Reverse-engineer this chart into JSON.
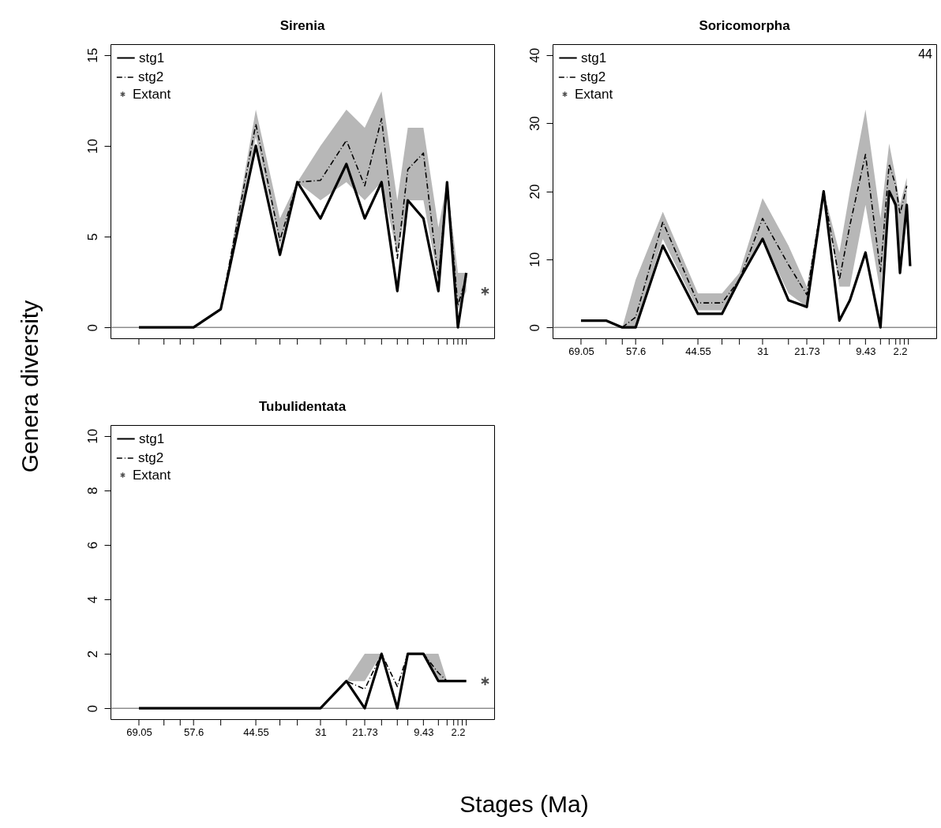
{
  "chart_data": [
    {
      "type": "line",
      "title": "Sirenia",
      "xlim": [
        75,
        -5.4
      ],
      "ylim": [
        -0.6,
        15.6
      ],
      "yticks": [
        0,
        5,
        10,
        15
      ],
      "xticks": [
        69.05,
        {
          "value": 63.8,
          "label": null
        },
        {
          "value": 60.4,
          "label": null
        },
        57.6,
        {
          "value": 51.9,
          "label": null
        },
        44.55,
        {
          "value": 39.5,
          "label": null
        },
        {
          "value": 35.85,
          "label": null
        },
        31,
        {
          "value": 25.57,
          "label": null
        },
        21.73,
        {
          "value": 18.2,
          "label": null
        },
        {
          "value": 14.9,
          "label": null
        },
        {
          "value": 12.7,
          "label": null
        },
        9.43,
        {
          "value": 6.29,
          "label": null
        },
        {
          "value": 4.47,
          "label": null
        },
        {
          "value": 3.09,
          "label": null
        },
        2.2,
        {
          "value": 1.29,
          "label": null
        },
        {
          "value": 0.45,
          "label": null
        }
      ],
      "tick_labels": "y",
      "legend": "top left",
      "grid": false,
      "ref_lines": [
        {
          "axis": "y",
          "value": 0,
          "color": "#555555"
        }
      ],
      "x": [
        69.05,
        63.8,
        60.4,
        57.6,
        51.9,
        44.55,
        39.5,
        35.85,
        31,
        25.57,
        21.73,
        18.2,
        14.9,
        12.7,
        9.43,
        6.29,
        4.47,
        2.2,
        0.45
      ],
      "series": [
        {
          "name": "stg1",
          "type": "line",
          "color": "#000000",
          "line_style": "solid",
          "values": [
            0,
            0,
            0,
            0,
            1,
            10,
            4,
            8,
            6,
            9,
            6,
            8,
            2,
            7,
            6,
            2,
            8,
            0,
            3
          ]
        },
        {
          "name": "stg2",
          "type": "line",
          "color": "#000000",
          "line_style": "dashed",
          "values": [
            0,
            0,
            0,
            0,
            1,
            11.2,
            4.8,
            8,
            8.1,
            10.3,
            7.8,
            11.5,
            3.8,
            8.7,
            9.6,
            2.7,
            8,
            1.2,
            2.8
          ],
          "lower": [
            0,
            0,
            0,
            0,
            1,
            10.5,
            4.5,
            8,
            7,
            8,
            7,
            8,
            4,
            7,
            7,
            2.5,
            8,
            1,
            2
          ],
          "upper": [
            0,
            0,
            0,
            0,
            1,
            12,
            6,
            8,
            10,
            12,
            11,
            13,
            7,
            11,
            11,
            5.5,
            8,
            3,
            3
          ]
        },
        {
          "name": "Extant",
          "type": "scatter",
          "marker": "cross",
          "color": "#000000",
          "x": [
            -3.5
          ],
          "values": [
            2
          ]
        }
      ]
    },
    {
      "type": "line",
      "title": "Soricomorpha",
      "xlim": [
        75,
        -5.4
      ],
      "ylim": [
        -1.6,
        41.6
      ],
      "yticks": [
        0,
        10,
        20,
        30,
        40
      ],
      "xticks": [
        69.05,
        {
          "value": 63.8,
          "label": null
        },
        {
          "value": 60.4,
          "label": null
        },
        57.6,
        {
          "value": 51.9,
          "label": null
        },
        44.55,
        {
          "value": 39.5,
          "label": null
        },
        {
          "value": 35.85,
          "label": null
        },
        31,
        {
          "value": 25.57,
          "label": null
        },
        21.73,
        {
          "value": 18.2,
          "label": null
        },
        {
          "value": 14.9,
          "label": null
        },
        {
          "value": 12.7,
          "label": null
        },
        9.43,
        {
          "value": 6.29,
          "label": null
        },
        {
          "value": 4.47,
          "label": null
        },
        {
          "value": 3.09,
          "label": null
        },
        2.2,
        {
          "value": 1.29,
          "label": null
        },
        {
          "value": 0.45,
          "label": null
        }
      ],
      "legend": "top left",
      "grid": false,
      "ref_lines": [
        {
          "axis": "y",
          "value": 0,
          "color": "#555555"
        }
      ],
      "annotations": [
        "44"
      ],
      "x": [
        69.05,
        63.8,
        60.4,
        57.6,
        51.9,
        44.55,
        39.5,
        35.85,
        31,
        25.57,
        21.73,
        18.2,
        14.9,
        12.7,
        9.43,
        6.29,
        4.47,
        3.09,
        2.2,
        0.78,
        0.07
      ],
      "series": [
        {
          "name": "stg1",
          "type": "line",
          "color": "#000000",
          "line_style": "solid",
          "values": [
            1,
            1,
            0,
            0,
            12,
            2,
            2,
            7,
            13,
            4,
            3,
            20,
            1,
            4,
            11,
            0,
            20,
            18,
            8,
            18,
            9
          ]
        },
        {
          "name": "stg2",
          "type": "line",
          "color": "#000000",
          "line_style": "dashed",
          "values": [
            null,
            null,
            0,
            1.5,
            15.5,
            3.6,
            3.6,
            7,
            16,
            9.2,
            4.8,
            20,
            7,
            15,
            25.4,
            8.2,
            24,
            20.8,
            16.6,
            20.8,
            null
          ],
          "lower": [
            null,
            null,
            0,
            0,
            13,
            2.5,
            2.5,
            7,
            13,
            5,
            3,
            20,
            6,
            6,
            18,
            5,
            20,
            17,
            11,
            18,
            null
          ],
          "upper": [
            null,
            null,
            0,
            7,
            17,
            5,
            5,
            8,
            19,
            12,
            6,
            20,
            11,
            20,
            32,
            16,
            27,
            22,
            18,
            22,
            null
          ]
        },
        {
          "name": "Extant",
          "type": "scatter",
          "marker": "cross",
          "color": "#000000",
          "x": [
            null
          ],
          "values": [
            null
          ]
        }
      ]
    },
    {
      "type": "line",
      "title": "Tubulidentata",
      "xlabel": "Stages (Ma)",
      "ylabel": "Genera diversity",
      "xlim": [
        75,
        -5.4
      ],
      "ylim": [
        -0.4,
        10.4
      ],
      "yticks": [
        0,
        2,
        4,
        6,
        8,
        10
      ],
      "xticks": [
        69.05,
        {
          "value": 63.8,
          "label": null
        },
        {
          "value": 60.4,
          "label": null
        },
        57.6,
        {
          "value": 51.9,
          "label": null
        },
        44.55,
        {
          "value": 39.5,
          "label": null
        },
        {
          "value": 35.85,
          "label": null
        },
        31,
        {
          "value": 25.57,
          "label": null
        },
        21.73,
        {
          "value": 18.2,
          "label": null
        },
        {
          "value": 14.9,
          "label": null
        },
        {
          "value": 12.7,
          "label": null
        },
        9.43,
        {
          "value": 6.29,
          "label": null
        },
        {
          "value": 4.47,
          "label": null
        },
        {
          "value": 3.09,
          "label": null
        },
        2.2,
        {
          "value": 1.29,
          "label": null
        },
        {
          "value": 0.45,
          "label": null
        }
      ],
      "legend": "top left",
      "grid": false,
      "ref_lines": [
        {
          "axis": "y",
          "value": 0,
          "color": "#555555"
        }
      ],
      "x": [
        69.05,
        63.8,
        60.4,
        57.6,
        51.9,
        44.55,
        39.5,
        35.85,
        31,
        25.57,
        21.73,
        18.2,
        14.9,
        12.7,
        9.43,
        6.29,
        4.47,
        2.2,
        0.45
      ],
      "series": [
        {
          "name": "stg1",
          "type": "line",
          "color": "#000000",
          "line_style": "solid",
          "values": [
            0,
            0,
            0,
            0,
            0,
            0,
            0,
            0,
            0,
            1,
            0,
            2,
            0,
            2,
            2,
            1,
            1,
            1,
            1
          ]
        },
        {
          "name": "stg2",
          "type": "line",
          "color": "#000000",
          "line_style": "dashed",
          "values": [
            0,
            0,
            0,
            0,
            0,
            0,
            0,
            0,
            0,
            1,
            0.7,
            2,
            0.8,
            2,
            2,
            1.3,
            1,
            1,
            1
          ],
          "lower": [
            0,
            0,
            0,
            0,
            0,
            0,
            0,
            0,
            0,
            1,
            1,
            2,
            1,
            2,
            2,
            1,
            1,
            1,
            1
          ],
          "upper": [
            0,
            0,
            0,
            0,
            0,
            0,
            0,
            0,
            0,
            1,
            2,
            2,
            1,
            2,
            2,
            2,
            1,
            1,
            1
          ]
        },
        {
          "name": "Extant",
          "type": "scatter",
          "marker": "cross",
          "color": "#000000",
          "x": [
            -3.5
          ],
          "values": [
            1
          ]
        }
      ]
    }
  ]
}
